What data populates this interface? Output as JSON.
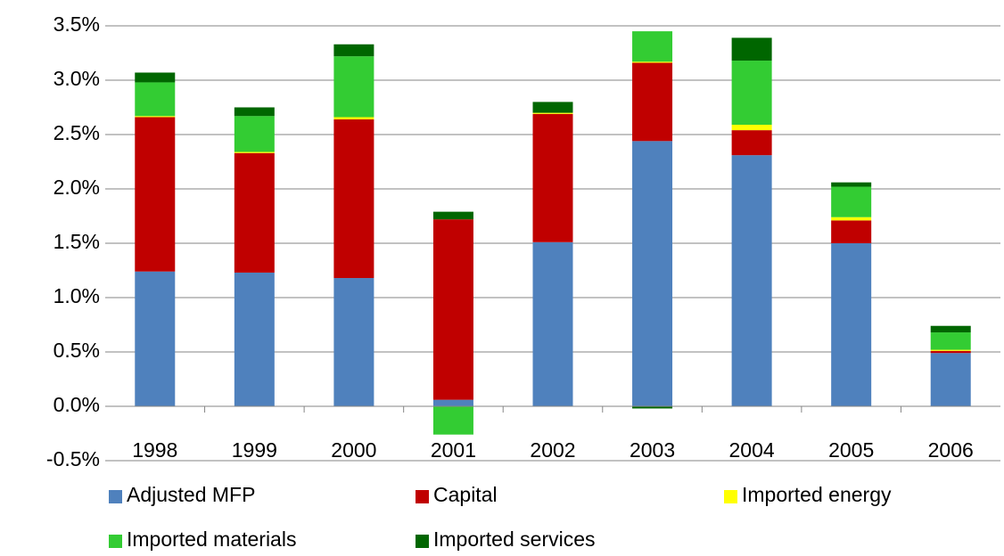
{
  "chart_data": {
    "type": "stacked-bar",
    "categories": [
      "1998",
      "1999",
      "2000",
      "2001",
      "2002",
      "2003",
      "2004",
      "2005",
      "2006"
    ],
    "series": [
      {
        "name": "Adjusted MFP",
        "color": "#4f81bd",
        "values": [
          1.24,
          1.23,
          1.18,
          0.06,
          1.51,
          2.44,
          2.31,
          1.5,
          0.49
        ]
      },
      {
        "name": "Capital",
        "color": "#c00000",
        "values": [
          1.42,
          1.1,
          1.46,
          1.66,
          1.18,
          0.72,
          0.23,
          0.21,
          0.02
        ]
      },
      {
        "name": "Imported energy",
        "color": "#ffff00",
        "values": [
          0.01,
          0.01,
          0.02,
          0,
          0.01,
          0.01,
          0.05,
          0.03,
          0.01
        ]
      },
      {
        "name": "Imported materials",
        "color": "#33cc33",
        "values": [
          0.31,
          0.33,
          0.56,
          -0.26,
          0,
          0.28,
          0.59,
          0.28,
          0.16
        ]
      },
      {
        "name": "Imported services",
        "color": "#006600",
        "values": [
          0.09,
          0.08,
          0.11,
          0.07,
          0.1,
          -0.02,
          0.21,
          0.04,
          0.06
        ]
      }
    ],
    "ylim": [
      -0.5,
      3.5
    ],
    "yticks": [
      {
        "value": -0.5,
        "label": "-0.5%"
      },
      {
        "value": 0,
        "label": "0.0%"
      },
      {
        "value": 0.5,
        "label": "0.5%"
      },
      {
        "value": 1,
        "label": "1.0%"
      },
      {
        "value": 1.5,
        "label": "1.5%"
      },
      {
        "value": 2,
        "label": "2.0%"
      },
      {
        "value": 2.5,
        "label": "2.5%"
      },
      {
        "value": 3,
        "label": "3.0%"
      },
      {
        "value": 3.5,
        "label": "3.5%"
      }
    ],
    "grid": true
  }
}
